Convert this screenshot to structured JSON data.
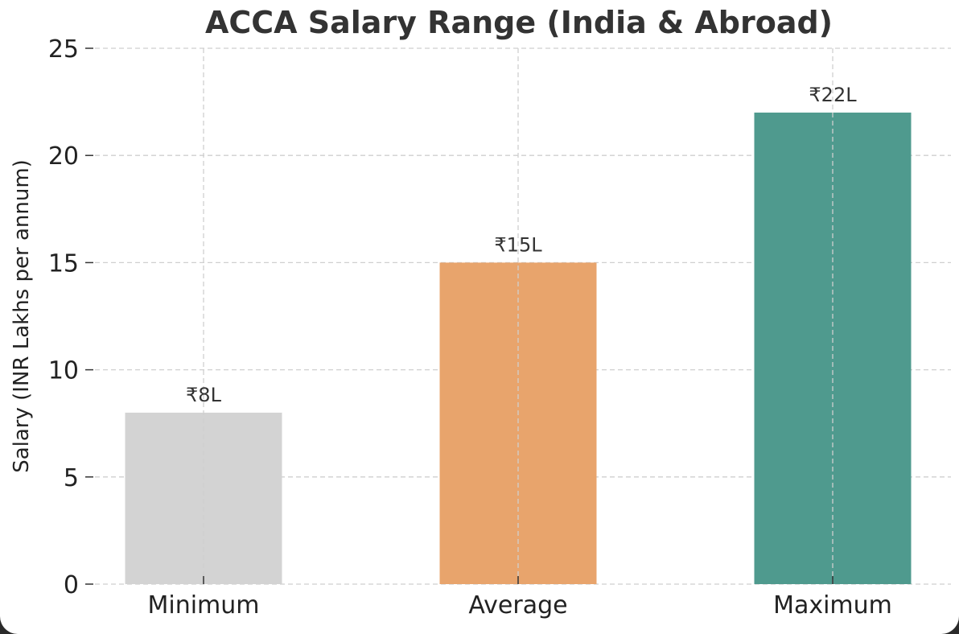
{
  "chart_data": {
    "type": "bar",
    "title": "ACCA Salary Range (India & Abroad)",
    "xlabel": "",
    "ylabel": "Salary (INR Lakhs per annum)",
    "categories": [
      "Minimum",
      "Average",
      "Maximum"
    ],
    "values": [
      8,
      15,
      22
    ],
    "data_labels": [
      "₹8L",
      "₹15L",
      "₹22L"
    ],
    "colors": [
      "#d3d3d3",
      "#e8a46c",
      "#4f9a8e"
    ],
    "ylim": [
      0,
      25
    ],
    "yticks": [
      0,
      5,
      10,
      15,
      20,
      25
    ],
    "grid": true,
    "grid_style": "dashed"
  }
}
